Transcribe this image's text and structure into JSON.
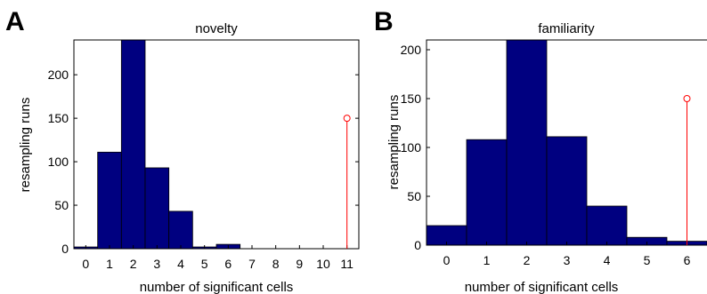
{
  "chart_data": [
    {
      "type": "bar",
      "panel_label": "A",
      "title": "novelty",
      "xlabel": "number of significant cells",
      "ylabel": "resampling runs",
      "categories": [
        0,
        1,
        2,
        3,
        4,
        5,
        6,
        7,
        8,
        9,
        10,
        11
      ],
      "values": [
        2,
        111,
        240,
        93,
        43,
        2,
        5,
        0,
        0,
        0,
        0,
        0
      ],
      "xlim": [
        -0.5,
        11.5
      ],
      "ylim": [
        0,
        240
      ],
      "yticks": [
        0,
        50,
        100,
        150,
        200
      ],
      "xticks": [
        0,
        1,
        2,
        3,
        4,
        5,
        6,
        7,
        8,
        9,
        10,
        11
      ],
      "bar_color": "#000080",
      "marker": {
        "x": 11,
        "y": 150,
        "color": "#ff0000",
        "style": "stem-circle"
      },
      "grid": false
    },
    {
      "type": "bar",
      "panel_label": "B",
      "title": "familiarity",
      "xlabel": "number of significant cells",
      "ylabel": "resampling runs",
      "categories": [
        0,
        1,
        2,
        3,
        4,
        5,
        6
      ],
      "values": [
        20,
        108,
        210,
        111,
        40,
        8,
        4
      ],
      "xlim": [
        -0.5,
        6.5
      ],
      "ylim": [
        0,
        210
      ],
      "yticks": [
        0,
        50,
        100,
        150,
        200
      ],
      "xticks": [
        0,
        1,
        2,
        3,
        4,
        5,
        6
      ],
      "bar_color": "#000080",
      "marker": {
        "x": 6,
        "y": 150,
        "color": "#ff0000",
        "style": "stem-circle"
      },
      "grid": false
    }
  ]
}
